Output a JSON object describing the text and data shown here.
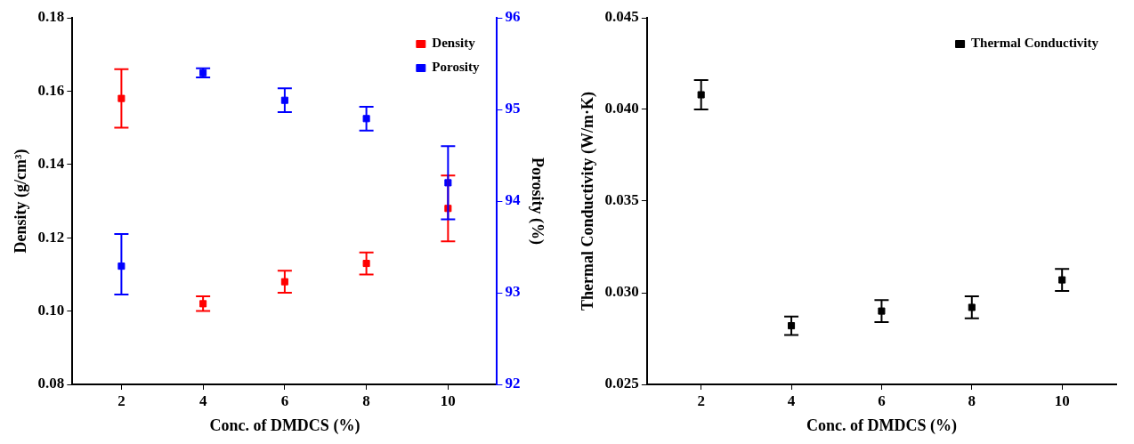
{
  "chart_data": [
    {
      "type": "scatter",
      "xlabel": "Conc. of DMDCS (%)",
      "ylabel": "Density (g/cm³)",
      "y2label": "Porosity (%)",
      "x": [
        2,
        4,
        6,
        8,
        10
      ],
      "xlim": [
        0.8,
        11.2
      ],
      "xticks": [
        2,
        4,
        6,
        8,
        10
      ],
      "ylim": [
        0.08,
        0.18
      ],
      "yticks": [
        {
          "value": 0.08,
          "label": "0.08"
        },
        {
          "value": 0.1,
          "label": "0.10"
        },
        {
          "value": 0.12,
          "label": "0.12"
        },
        {
          "value": 0.14,
          "label": "0.14"
        },
        {
          "value": 0.16,
          "label": "0.16"
        },
        {
          "value": 0.18,
          "label": "0.18"
        }
      ],
      "y2lim": [
        92,
        96
      ],
      "y2ticks": [
        92,
        93,
        94,
        95,
        96
      ],
      "marker": "square",
      "legend": "top right",
      "grid": false,
      "series": [
        {
          "name": "Density",
          "color": "#ff0000",
          "values": [
            0.158,
            0.102,
            0.108,
            0.113,
            0.128
          ],
          "errors": [
            0.008,
            0.002,
            0.003,
            0.003,
            0.009
          ]
        },
        {
          "name": "Porosity",
          "color": "#0000ff",
          "axis": "y2",
          "values": [
            93.29,
            95.4,
            95.1,
            94.9,
            94.2
          ],
          "errors": [
            [
              92.98,
              93.64
            ],
            0.05,
            0.13,
            0.13,
            [
              93.8,
              94.6
            ]
          ]
        }
      ]
    },
    {
      "type": "scatter",
      "xlabel": "Conc. of DMDCS (%)",
      "ylabel": "Thermal Conductivity (W/m·K)",
      "x": [
        2,
        4,
        6,
        8,
        10
      ],
      "xlim": [
        0.8,
        11.2
      ],
      "xticks": [
        2,
        4,
        6,
        8,
        10
      ],
      "ylim": [
        0.025,
        0.045
      ],
      "yticks": [
        {
          "value": 0.025,
          "label": "0.025"
        },
        {
          "value": 0.03,
          "label": "0.030"
        },
        {
          "value": 0.035,
          "label": "0.035"
        },
        {
          "value": 0.04,
          "label": "0.040"
        },
        {
          "value": 0.045,
          "label": "0.045"
        }
      ],
      "marker": "square",
      "legend": "top right",
      "grid": false,
      "series": [
        {
          "name": "Thermal Conductivity",
          "color": "#000000",
          "values": [
            0.0408,
            0.0282,
            0.029,
            0.0292,
            0.0307
          ],
          "errors": [
            0.0008,
            0.0005,
            0.0006,
            0.0006,
            0.0006
          ]
        }
      ]
    }
  ]
}
